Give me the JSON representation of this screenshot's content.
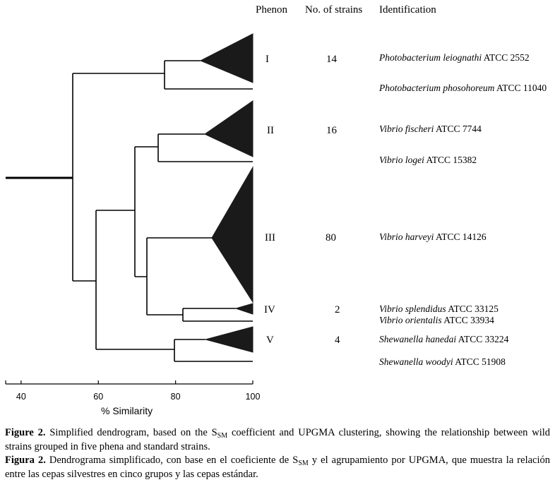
{
  "headers": {
    "phenon": "Phenon",
    "strains": "No. of strains",
    "identification": "Identification"
  },
  "phena": [
    {
      "id": "I",
      "strains": "14"
    },
    {
      "id": "II",
      "strains": "16"
    },
    {
      "id": "III",
      "strains": "80"
    },
    {
      "id": "IV",
      "strains": "2"
    },
    {
      "id": "V",
      "strains": "4"
    }
  ],
  "identifications": [
    {
      "species": "Photobacterium leiognathi",
      "atcc": " ATCC 2552"
    },
    {
      "species": "Photobacterium phosohoreum",
      "atcc": " ATCC 11040"
    },
    {
      "species": "Vibrio fischeri",
      "atcc": " ATCC 7744"
    },
    {
      "species": "Vibrio logei",
      "atcc": " ATCC 15382"
    },
    {
      "species": "Vibrio harveyi",
      "atcc": " ATCC 14126"
    },
    {
      "species": "Vibrio splendidus",
      "atcc": " ATCC 33125"
    },
    {
      "species": "Vibrio orientalis",
      "atcc": " ATCC 33934"
    },
    {
      "species": "Shewanella hanedai",
      "atcc": " ATCC 33224"
    },
    {
      "species": "Shewanella woodyi",
      "atcc": " ATCC 51908"
    }
  ],
  "axis": {
    "label": "% Similarity",
    "range": [
      36,
      100
    ],
    "ticks": [
      {
        "value": 40,
        "label": "40"
      },
      {
        "value": 60,
        "label": "60"
      },
      {
        "value": 80,
        "label": "80"
      },
      {
        "value": 100,
        "label": "100"
      }
    ]
  },
  "dendrogram_nodes_similarity": {
    "phenon_I_clade_tip": 87,
    "phenon_I_with_P_phosphoreum": 77.5,
    "phenon_II_clade_tip": 88.5,
    "phenon_II_with_V_logei": 76,
    "phenon_III_clade_tip": 89,
    "phenon_IV_clade_tip": 96,
    "phenon_IV_with_V_orientalis": 82,
    "III_with_IV": 73,
    "II_with_III_IV": 70,
    "phenon_V_clade_tip": 88,
    "phenon_V_with_S_woodyi": 80,
    "vibrio_with_shewanella": 60,
    "root": 54
  },
  "caption": {
    "en_label": "Figure 2.",
    "en_text_1": " Simplified dendrogram, based on the S",
    "en_sub": "SM",
    "en_text_2": " coefficient and UPGMA clustering, showing the relationship between wild strains grouped in five phena and standard strains.",
    "es_label": "Figura 2.",
    "es_text_1": " Dendrograma simplificado, con base en el coeficiente de S",
    "es_sub": "SM",
    "es_text_2": " y el agrupamiento por UPGMA, que muestra la relación entre las cepas silvestres en cinco grupos y las cepas estándar."
  }
}
